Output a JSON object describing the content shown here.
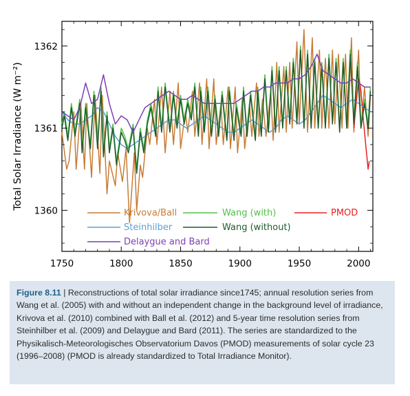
{
  "chart_data": {
    "type": "line",
    "ylabel": "Total Solar Irradiance (W m⁻²)",
    "xlim": [
      1750,
      2012
    ],
    "ylim": [
      1359.5,
      1362.3
    ],
    "x_ticks": [
      1750,
      1800,
      1850,
      1900,
      1950,
      2000
    ],
    "y_ticks": [
      1360,
      1361,
      1362
    ],
    "grid": false,
    "legend_position": "bottom-left",
    "series": [
      {
        "name": "Krivova/Ball",
        "color": "#c87b34",
        "x": [
          1750,
          1754,
          1756,
          1760,
          1762,
          1766,
          1769,
          1771,
          1775,
          1778,
          1782,
          1784,
          1788,
          1790,
          1795,
          1797,
          1801,
          1804,
          1807,
          1811,
          1813,
          1816,
          1818,
          1822,
          1824,
          1828,
          1830,
          1834,
          1837,
          1841,
          1844,
          1848,
          1850,
          1854,
          1856,
          1860,
          1862,
          1866,
          1868,
          1872,
          1874,
          1878,
          1880,
          1884,
          1886,
          1890,
          1892,
          1896,
          1898,
          1902,
          1904,
          1908,
          1910,
          1914,
          1916,
          1919,
          1922,
          1926,
          1928,
          1931,
          1933,
          1937,
          1939,
          1942,
          1944,
          1948,
          1950,
          1954,
          1957,
          1961,
          1963,
          1967,
          1969,
          1972,
          1975,
          1978,
          1980,
          1983,
          1986,
          1989,
          1991,
          1994,
          1996,
          2000,
          2002,
          2005,
          2008,
          2010
        ],
        "y": [
          1360.95,
          1360.5,
          1360.6,
          1361.2,
          1360.5,
          1361.3,
          1360.5,
          1361.3,
          1360.4,
          1361.4,
          1360.45,
          1361.4,
          1360.2,
          1360.6,
          1360.3,
          1360.7,
          1360.35,
          1360.75,
          1359.85,
          1360.7,
          1360.0,
          1360.55,
          1360.4,
          1361.0,
          1360.8,
          1361.35,
          1360.8,
          1361.5,
          1360.7,
          1361.45,
          1360.8,
          1361.55,
          1360.75,
          1361.2,
          1360.95,
          1361.45,
          1360.9,
          1361.55,
          1360.8,
          1361.6,
          1360.75,
          1361.6,
          1360.8,
          1361.3,
          1360.8,
          1361.5,
          1360.75,
          1361.5,
          1360.7,
          1361.35,
          1360.75,
          1361.3,
          1360.9,
          1361.55,
          1360.9,
          1361.35,
          1360.9,
          1361.45,
          1360.85,
          1361.8,
          1360.95,
          1361.75,
          1360.95,
          1361.8,
          1361.0,
          1362.05,
          1361.05,
          1362.2,
          1360.95,
          1362.1,
          1361.0,
          1361.95,
          1361.0,
          1361.85,
          1361.0,
          1361.95,
          1361.05,
          1361.9,
          1361.0,
          1361.9,
          1361.0,
          1362.1,
          1360.95,
          1361.95,
          1361.0,
          1361.5,
          1360.9,
          1361.4
        ]
      },
      {
        "name": "Wang (with)",
        "color": "#4fc04a",
        "x": [
          1750,
          1752,
          1755,
          1758,
          1761,
          1765,
          1767,
          1770,
          1774,
          1777,
          1780,
          1783,
          1785,
          1788,
          1790,
          1793,
          1796,
          1800,
          1803,
          1806,
          1810,
          1813,
          1816,
          1819,
          1822,
          1825,
          1829,
          1831,
          1834,
          1837,
          1841,
          1844,
          1847,
          1850,
          1853,
          1856,
          1859,
          1862,
          1865,
          1867,
          1870,
          1873,
          1876,
          1879,
          1882,
          1885,
          1889,
          1891,
          1895,
          1897,
          1901,
          1903,
          1906,
          1909,
          1913,
          1915,
          1918,
          1921,
          1924,
          1927,
          1930,
          1933,
          1936,
          1939,
          1942,
          1945,
          1948,
          1951,
          1954,
          1957,
          1960,
          1963,
          1966,
          1969,
          1972,
          1975,
          1978,
          1981,
          1984,
          1987,
          1990,
          1993,
          1996,
          1999,
          2002,
          2005,
          2008,
          2010
        ],
        "y": [
          1361.05,
          1361.2,
          1360.9,
          1361.3,
          1360.95,
          1361.35,
          1360.75,
          1361.3,
          1360.8,
          1361.45,
          1360.8,
          1361.5,
          1360.7,
          1361.2,
          1360.75,
          1361.05,
          1360.6,
          1361.0,
          1360.9,
          1360.75,
          1361.05,
          1360.5,
          1361.0,
          1360.75,
          1361.1,
          1361.3,
          1360.95,
          1361.5,
          1361.0,
          1361.55,
          1361.0,
          1361.45,
          1361.05,
          1361.4,
          1361.1,
          1361.35,
          1361.15,
          1361.55,
          1360.95,
          1361.5,
          1361.0,
          1361.5,
          1360.95,
          1361.4,
          1360.95,
          1361.45,
          1360.9,
          1361.5,
          1360.9,
          1361.3,
          1360.95,
          1361.5,
          1360.95,
          1361.45,
          1360.9,
          1361.5,
          1360.95,
          1361.65,
          1361.0,
          1361.75,
          1361.0,
          1361.75,
          1361.05,
          1361.75,
          1361.1,
          1361.85,
          1361.1,
          1362.0,
          1361.05,
          1361.95,
          1361.05,
          1361.85,
          1361.05,
          1361.8,
          1361.05,
          1361.9,
          1361.1,
          1361.85,
          1361.0,
          1361.85,
          1361.05,
          1361.95,
          1361.1,
          1361.8,
          1361.05,
          1361.35,
          1361.05,
          1361.5
        ]
      },
      {
        "name": "PMOD",
        "color": "#e82020",
        "x": [
          1996,
          1998,
          2000,
          2001,
          2002,
          2004,
          2006,
          2008,
          2009
        ],
        "y": [
          1361.0,
          1361.3,
          1361.6,
          1361.55,
          1361.45,
          1361.1,
          1360.8,
          1360.5,
          1360.6
        ]
      },
      {
        "name": "Steinhilber",
        "color": "#5aa0d8",
        "x": [
          1750,
          1755,
          1760,
          1765,
          1770,
          1775,
          1780,
          1785,
          1790,
          1795,
          1800,
          1805,
          1810,
          1815,
          1820,
          1825,
          1830,
          1835,
          1840,
          1845,
          1850,
          1855,
          1860,
          1865,
          1870,
          1875,
          1880,
          1885,
          1890,
          1895,
          1900,
          1905,
          1910,
          1915,
          1920,
          1925,
          1930,
          1935,
          1940,
          1945,
          1950,
          1955,
          1960,
          1965,
          1970,
          1975,
          1980,
          1985,
          1990,
          1995,
          2000,
          2005,
          2010
        ],
        "y": [
          1361.2,
          1361.1,
          1361.05,
          1361.05,
          1361.1,
          1361.15,
          1361.25,
          1361.2,
          1361.05,
          1360.9,
          1360.8,
          1360.75,
          1360.8,
          1360.85,
          1360.9,
          1360.95,
          1361.0,
          1361.05,
          1361.1,
          1361.1,
          1361.05,
          1361.0,
          1361.05,
          1361.1,
          1361.15,
          1361.1,
          1361.05,
          1361.0,
          1360.95,
          1360.95,
          1361.0,
          1361.05,
          1361.1,
          1361.05,
          1361.0,
          1360.95,
          1361.0,
          1361.1,
          1361.15,
          1361.1,
          1361.05,
          1361.1,
          1361.2,
          1361.3,
          1361.4,
          1361.35,
          1361.3,
          1361.25,
          1361.3,
          1361.35,
          1361.3,
          1361.25,
          1361.2
        ]
      },
      {
        "name": "Wang (without)",
        "color": "#1d5a2c",
        "x": [
          1750,
          1752,
          1755,
          1758,
          1761,
          1765,
          1767,
          1770,
          1774,
          1777,
          1780,
          1783,
          1785,
          1788,
          1790,
          1793,
          1796,
          1800,
          1803,
          1806,
          1810,
          1813,
          1816,
          1819,
          1822,
          1825,
          1829,
          1831,
          1834,
          1837,
          1841,
          1844,
          1847,
          1850,
          1853,
          1856,
          1859,
          1862,
          1865,
          1867,
          1870,
          1873,
          1876,
          1879,
          1882,
          1885,
          1889,
          1891,
          1895,
          1897,
          1901,
          1903,
          1906,
          1909,
          1913,
          1915,
          1918,
          1921,
          1924,
          1927,
          1930,
          1933,
          1936,
          1939,
          1942,
          1945,
          1948,
          1951,
          1954,
          1957,
          1960,
          1963,
          1966,
          1969,
          1972,
          1975,
          1978,
          1981,
          1984,
          1987,
          1990,
          1993,
          1996,
          1999,
          2002,
          2005,
          2008,
          2010
        ],
        "y": [
          1361.0,
          1361.15,
          1360.85,
          1361.25,
          1360.9,
          1361.3,
          1360.7,
          1361.25,
          1360.75,
          1361.4,
          1360.75,
          1361.45,
          1360.65,
          1361.15,
          1360.7,
          1361.0,
          1360.55,
          1360.95,
          1360.85,
          1360.7,
          1361.0,
          1360.45,
          1360.95,
          1360.7,
          1361.05,
          1361.25,
          1360.9,
          1361.45,
          1360.95,
          1361.5,
          1360.95,
          1361.4,
          1361.0,
          1361.35,
          1361.05,
          1361.3,
          1361.1,
          1361.5,
          1360.9,
          1361.45,
          1360.95,
          1361.45,
          1360.9,
          1361.35,
          1360.9,
          1361.4,
          1360.85,
          1361.45,
          1360.85,
          1361.25,
          1360.9,
          1361.45,
          1360.9,
          1361.4,
          1360.85,
          1361.45,
          1360.9,
          1361.6,
          1360.95,
          1361.7,
          1360.95,
          1361.7,
          1361.0,
          1361.7,
          1361.05,
          1361.8,
          1361.05,
          1361.95,
          1361.0,
          1361.9,
          1361.0,
          1361.8,
          1361.0,
          1361.75,
          1361.0,
          1361.85,
          1361.05,
          1361.8,
          1360.95,
          1361.8,
          1361.0,
          1361.9,
          1361.05,
          1361.75,
          1361.0,
          1361.3,
          1361.0,
          1361.45
        ]
      },
      {
        "name": "Delaygue and Bard",
        "color": "#7b3fb5",
        "x": [
          1750,
          1755,
          1760,
          1765,
          1770,
          1775,
          1780,
          1785,
          1790,
          1795,
          1800,
          1805,
          1810,
          1815,
          1820,
          1825,
          1830,
          1835,
          1840,
          1845,
          1850,
          1855,
          1860,
          1865,
          1870,
          1875,
          1880,
          1885,
          1890,
          1895,
          1900,
          1905,
          1910,
          1915,
          1920,
          1925,
          1930,
          1935,
          1940,
          1945,
          1950,
          1955,
          1960,
          1965,
          1970,
          1975,
          1980,
          1985,
          1990,
          1995,
          2000,
          2005,
          2010
        ],
        "y": [
          1361.2,
          1361.15,
          1361.1,
          1361.25,
          1361.55,
          1361.3,
          1361.35,
          1361.65,
          1361.3,
          1361.05,
          1361.15,
          1361.1,
          1360.95,
          1361.1,
          1361.25,
          1361.3,
          1361.35,
          1361.4,
          1361.45,
          1361.4,
          1361.35,
          1361.35,
          1361.4,
          1361.35,
          1361.3,
          1361.3,
          1361.3,
          1361.3,
          1361.3,
          1361.3,
          1361.35,
          1361.4,
          1361.45,
          1361.45,
          1361.5,
          1361.5,
          1361.55,
          1361.55,
          1361.55,
          1361.6,
          1361.6,
          1361.65,
          1361.75,
          1361.9,
          1361.7,
          1361.65,
          1361.6,
          1361.55,
          1361.55,
          1361.6,
          1361.55,
          1361.5,
          1361.5
        ]
      }
    ]
  },
  "legend": {
    "krivova": "Krivova/Ball",
    "wang_with": "Wang (with)",
    "pmod": "PMOD",
    "steinhilber": "Steinhilber",
    "wang_without": "Wang (without)",
    "delaygue": "Delaygue and Bard"
  },
  "caption": {
    "label": "Figure 8.11",
    "text": " | Reconstructions of total solar irradiance since1745; annual resolution series from Wang et al. (2005) with and without an independent change in the background level of irradiance, Krivova et al. (2010) combined with Ball et al. (2012) and 5-year time resolution series from Steinhilber et al. (2009) and Delaygue and Bard (2011). The series are standardized to the Physikalisch-Meteorologisches Observatorium Davos (PMOD) measurements of solar cycle 23 (1996–2008) (PMOD is already standardized to Total Irradiance Monitor)."
  }
}
